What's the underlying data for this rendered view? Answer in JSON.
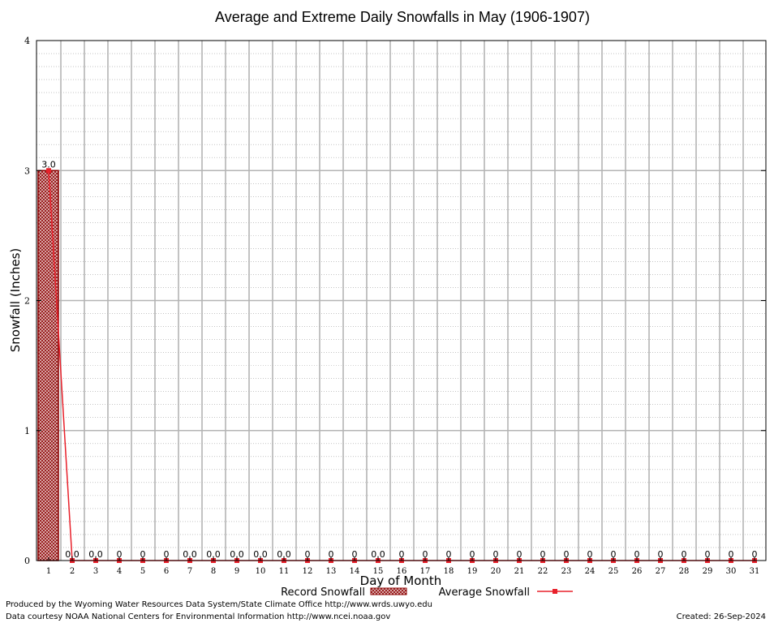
{
  "chart_data": {
    "type": "bar",
    "title": "Average and Extreme Daily Snowfalls in May (1906-1907)",
    "xlabel": "Day of Month",
    "ylabel": "Snowfall (Inches)",
    "ylim": [
      0,
      4
    ],
    "yticks": [
      "0",
      "1",
      "2",
      "3",
      "4"
    ],
    "grid": true,
    "categories": [
      "1",
      "2",
      "3",
      "4",
      "5",
      "6",
      "7",
      "8",
      "9",
      "10",
      "11",
      "12",
      "13",
      "14",
      "15",
      "16",
      "17",
      "18",
      "19",
      "20",
      "21",
      "22",
      "23",
      "24",
      "25",
      "26",
      "27",
      "28",
      "29",
      "30",
      "31"
    ],
    "series": [
      {
        "name": "Record Snowfall",
        "kind": "bar",
        "color": "#8b0000",
        "values": [
          3.0,
          0,
          0,
          0,
          0,
          0,
          0,
          0,
          0,
          0,
          0,
          0,
          0,
          0,
          0,
          0,
          0,
          0,
          0,
          0,
          0,
          0,
          0,
          0,
          0,
          0,
          0,
          0,
          0,
          0,
          0
        ]
      },
      {
        "name": "Average Snowfall",
        "kind": "line",
        "color": "#e8202a",
        "values": [
          3.0,
          0,
          0,
          0,
          0,
          0,
          0,
          0,
          0,
          0,
          0,
          0,
          0,
          0,
          0,
          0,
          0,
          0,
          0,
          0,
          0,
          0,
          0,
          0,
          0,
          0,
          0,
          0,
          0,
          0,
          0
        ]
      }
    ],
    "data_labels": [
      "3.0",
      "0.0",
      "0.0",
      "0",
      "0",
      "0",
      "0.0",
      "0.0",
      "0.0",
      "0.0",
      "0.0",
      "0",
      "0",
      "0",
      "0.0",
      "0",
      "0",
      "0",
      "0",
      "0",
      "0",
      "0",
      "0",
      "0",
      "0",
      "0",
      "0",
      "0",
      "0",
      "0",
      "0"
    ],
    "legend_position": "bottom"
  },
  "footer": {
    "line1": "Produced by the Wyoming Water Resources Data System/State Climate Office http://www.wrds.uwyo.edu",
    "line2": "Data courtesy NOAA National Centers for Environmental Information http://www.ncei.noaa.gov",
    "created": "Created:  26-Sep-2024"
  },
  "colors": {
    "grid_major": "#b4b4b4",
    "grid_minor": "#a0a0a0",
    "bar_fill": "#c89090"
  }
}
